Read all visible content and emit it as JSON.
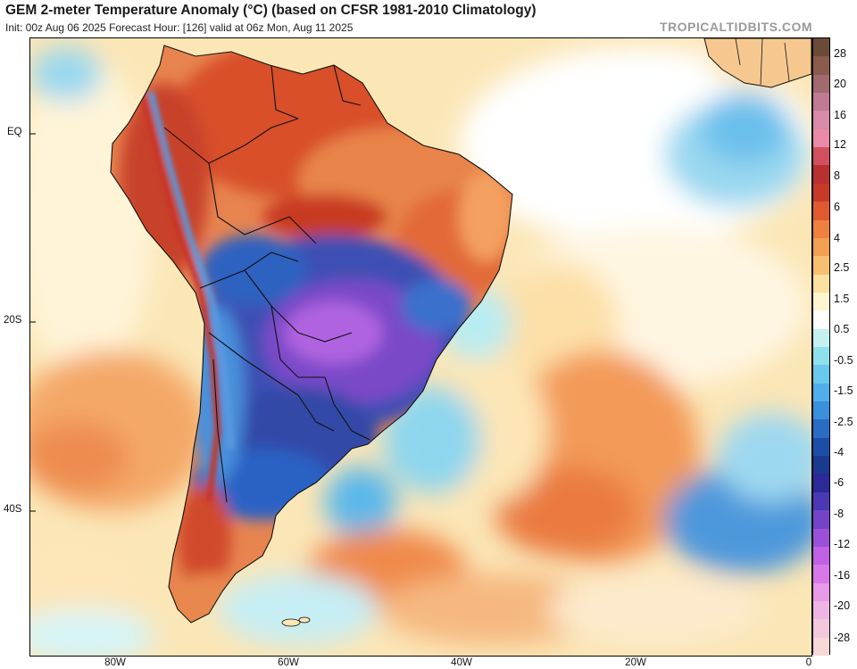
{
  "header": {
    "title": "GEM 2-meter Temperature Anomaly (°C) (based on CFSR 1981-2010 Climatology)",
    "subtitle": "Init: 00z Aug 06 2025   Forecast Hour: [126]   valid at 06z Mon, Aug 11 2025",
    "brand": "TROPICALTIDBITS.COM"
  },
  "map": {
    "lat_labels": [
      "EQ",
      "20S",
      "40S"
    ],
    "lon_labels": [
      "80W",
      "60W",
      "40W",
      "20W",
      "0"
    ]
  },
  "colorbar": {
    "labels": [
      "28",
      "20",
      "16",
      "12",
      "8",
      "6",
      "4",
      "2.5",
      "1.5",
      "0.5",
      "-0.5",
      "-1.5",
      "-2.5",
      "-4",
      "-6",
      "-8",
      "-12",
      "-16",
      "-20",
      "-28"
    ],
    "colors": [
      "#6b4a38",
      "#8a5c4e",
      "#a06a70",
      "#c07a93",
      "#d88aa8",
      "#e88aa8",
      "#d05060",
      "#b83030",
      "#c83a28",
      "#e05a30",
      "#f08040",
      "#f0a050",
      "#f7c070",
      "#fbe0a0",
      "#fff5d0",
      "#ffffff",
      "#c4f0f0",
      "#8ee0ec",
      "#6ac8ec",
      "#52aee8",
      "#3a90dc",
      "#2a6cc4",
      "#1c4ea8",
      "#1a3a8e",
      "#2a2a98",
      "#4a38b4",
      "#7444c8",
      "#9a50d8",
      "#c060e4",
      "#d878e8",
      "#e79ae8",
      "#eeb4e4",
      "#f2c8dc",
      "#f6d8d8"
    ]
  }
}
